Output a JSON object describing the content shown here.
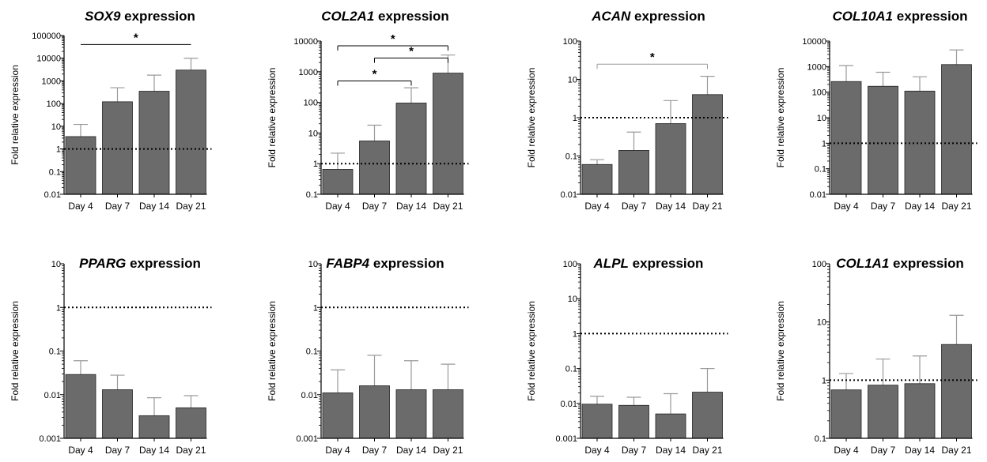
{
  "colors": {
    "bar": "#6b6b6b",
    "bar_edge": "#222222",
    "axis": "#000000",
    "error": "#9a9a9a",
    "baseline": "#000000"
  },
  "chart_data": [
    {
      "type": "bar",
      "title": "SOX9 expression",
      "gene": "SOX9",
      "title_suffix": " expression",
      "ylabel": "Fold relative expression",
      "yscale": "log",
      "ylim": [
        0.01,
        100000
      ],
      "yticks": [
        0.01,
        0.1,
        1,
        10,
        100,
        1000,
        10000,
        100000
      ],
      "ytick_labels": [
        "0.01",
        "0.1",
        "1",
        "10",
        "100",
        "1000",
        "10000",
        "100000"
      ],
      "categories": [
        "Day 4",
        "Day 7",
        "Day 14",
        "Day 21"
      ],
      "values": [
        3.5,
        120,
        350,
        3000
      ],
      "errors_upper": [
        12,
        500,
        1800,
        10000
      ],
      "reference_line": 1,
      "significance": [
        {
          "from": 0,
          "to": 3,
          "label": "*",
          "y": 40000,
          "style": "plain"
        }
      ]
    },
    {
      "type": "bar",
      "title": "COL2A1 expression",
      "gene": "COL2A1",
      "title_suffix": " expression",
      "ylabel": "Fold relative expression",
      "yscale": "log",
      "ylim": [
        0.1,
        10000
      ],
      "yticks": [
        0.1,
        1,
        10,
        100,
        1000,
        10000
      ],
      "ytick_labels": [
        "0.1",
        "1",
        "10",
        "100",
        "1000",
        "10000"
      ],
      "categories": [
        "Day 4",
        "Day 7",
        "Day 14",
        "Day 21"
      ],
      "values": [
        0.65,
        5.5,
        95,
        900
      ],
      "errors_upper": [
        2.2,
        18,
        300,
        3500
      ],
      "reference_line": 1,
      "significance": [
        {
          "from": 0,
          "to": 3,
          "label": "*",
          "y": 7000,
          "style": "bracket"
        },
        {
          "from": 1,
          "to": 3,
          "label": "*",
          "y": 2800,
          "style": "bracket"
        },
        {
          "from": 0,
          "to": 2,
          "label": "*",
          "y": 500,
          "style": "bracket"
        }
      ]
    },
    {
      "type": "bar",
      "title": "ACAN expression",
      "gene": "ACAN",
      "title_suffix": " expression",
      "ylabel": "Fold relative expression",
      "yscale": "log",
      "ylim": [
        0.01,
        100
      ],
      "yticks": [
        0.01,
        0.1,
        1,
        10,
        100
      ],
      "ytick_labels": [
        "0.01",
        "0.1",
        "1",
        "10",
        "100"
      ],
      "categories": [
        "Day 4",
        "Day 7",
        "Day 14",
        "Day 21"
      ],
      "values": [
        0.06,
        0.14,
        0.7,
        4
      ],
      "errors_upper": [
        0.08,
        0.42,
        2.8,
        12
      ],
      "reference_line": 1,
      "significance": [
        {
          "from": 0,
          "to": 3,
          "label": "*",
          "y": 25,
          "style": "bracket"
        }
      ]
    },
    {
      "type": "bar",
      "title": "COL10A1 expression",
      "gene": "COL10A1",
      "title_suffix": " expression",
      "ylabel": "Fold relative expression",
      "yscale": "log",
      "ylim": [
        0.01,
        10000
      ],
      "yticks": [
        0.01,
        0.1,
        1,
        10,
        100,
        1000,
        10000
      ],
      "ytick_labels": [
        "0.01",
        "0.1",
        "1",
        "10",
        "100",
        "1000",
        "10000"
      ],
      "categories": [
        "Day 4",
        "Day 7",
        "Day 14",
        "Day 21"
      ],
      "values": [
        260,
        170,
        110,
        1200
      ],
      "errors_upper": [
        1100,
        600,
        400,
        4500
      ],
      "reference_line": 1,
      "significance": []
    },
    {
      "type": "bar",
      "title": "PPARG expression",
      "gene": "PPARG",
      "title_suffix": " expression",
      "ylabel": "Fold relative expression",
      "yscale": "log",
      "ylim": [
        0.001,
        10
      ],
      "yticks": [
        0.001,
        0.01,
        0.1,
        1,
        10
      ],
      "ytick_labels": [
        "0.001",
        "0.01",
        "0.1",
        "1",
        "10"
      ],
      "categories": [
        "Day 4",
        "Day 7",
        "Day 14",
        "Day 21"
      ],
      "values": [
        0.029,
        0.013,
        0.0033,
        0.005
      ],
      "errors_upper": [
        0.06,
        0.028,
        0.0085,
        0.0095
      ],
      "reference_line": 1,
      "significance": []
    },
    {
      "type": "bar",
      "title": "FABP4 expression",
      "gene": "FABP4",
      "title_suffix": " expression",
      "ylabel": "Fold relative expression",
      "yscale": "log",
      "ylim": [
        0.001,
        10
      ],
      "yticks": [
        0.001,
        0.01,
        0.1,
        1,
        10
      ],
      "ytick_labels": [
        "0.001",
        "0.01",
        "0.1",
        "1",
        "10"
      ],
      "categories": [
        "Day 4",
        "Day 7",
        "Day 14",
        "Day 21"
      ],
      "values": [
        0.011,
        0.016,
        0.013,
        0.013
      ],
      "errors_upper": [
        0.037,
        0.08,
        0.06,
        0.05
      ],
      "reference_line": 1,
      "significance": []
    },
    {
      "type": "bar",
      "title": "ALPL expression",
      "gene": "ALPL",
      "title_suffix": " expression",
      "ylabel": "Fold relative expression",
      "yscale": "log",
      "ylim": [
        0.001,
        100
      ],
      "yticks": [
        0.001,
        0.01,
        0.1,
        1,
        10,
        100
      ],
      "ytick_labels": [
        "0.001",
        "0.01",
        "0.1",
        "1",
        "10",
        "100"
      ],
      "categories": [
        "Day 4",
        "Day 7",
        "Day 14",
        "Day 21"
      ],
      "values": [
        0.0095,
        0.0088,
        0.005,
        0.021
      ],
      "errors_upper": [
        0.016,
        0.015,
        0.019,
        0.1
      ],
      "reference_line": 1,
      "significance": []
    },
    {
      "type": "bar",
      "title": "COL1A1 expression",
      "gene": "COL1A1",
      "title_suffix": " expression",
      "ylabel": "Fold relative expression",
      "yscale": "log",
      "ylim": [
        0.1,
        100
      ],
      "yticks": [
        0.1,
        1,
        10,
        100
      ],
      "ytick_labels": [
        "0.1",
        "1",
        "10",
        "100"
      ],
      "categories": [
        "Day 4",
        "Day 7",
        "Day 14",
        "Day 21"
      ],
      "values": [
        0.68,
        0.82,
        0.87,
        4.1
      ],
      "errors_upper": [
        1.3,
        2.3,
        2.6,
        13
      ],
      "reference_line": 1,
      "significance": []
    }
  ]
}
